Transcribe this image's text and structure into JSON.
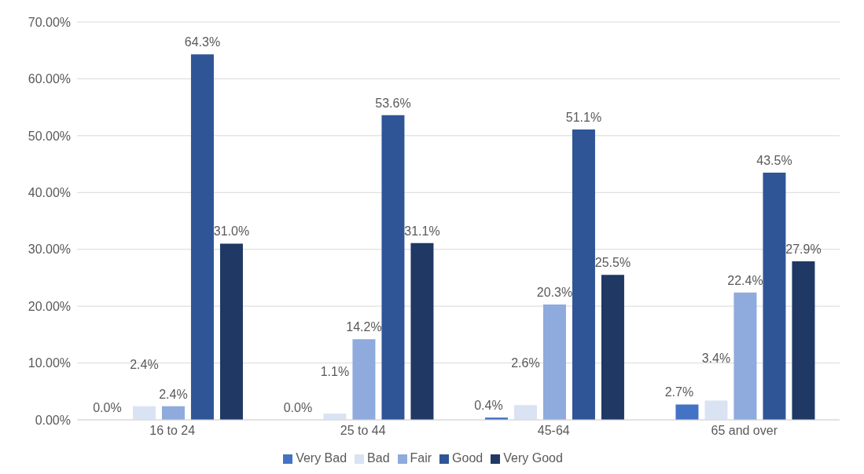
{
  "chart_data": {
    "type": "bar",
    "categories": [
      "16 to 24",
      "25 to 44",
      "45-64",
      "65 and over"
    ],
    "series": [
      {
        "name": "Very Bad",
        "color": "#4472c4",
        "values": [
          0.0,
          0.0,
          0.4,
          2.7
        ],
        "value_labels": [
          "0.0%",
          "0.0%",
          "0.4%",
          "2.7%"
        ]
      },
      {
        "name": "Bad",
        "color": "#dae3f3",
        "values": [
          2.4,
          1.1,
          2.6,
          3.4
        ],
        "value_labels": [
          "2.4%",
          "1.1%",
          "2.6%",
          "3.4%"
        ]
      },
      {
        "name": "Fair",
        "color": "#8faadc",
        "values": [
          2.4,
          14.2,
          20.3,
          22.4
        ],
        "value_labels": [
          "2.4%",
          "14.2%",
          "20.3%",
          "22.4%"
        ]
      },
      {
        "name": "Good",
        "color": "#2f5597",
        "values": [
          64.3,
          53.6,
          51.1,
          43.5
        ],
        "value_labels": [
          "64.3%",
          "53.6%",
          "51.1%",
          "43.5%"
        ]
      },
      {
        "name": "Very Good",
        "color": "#1f3864",
        "values": [
          31.0,
          31.1,
          25.5,
          27.9
        ],
        "value_labels": [
          "31.0%",
          "31.1%",
          "25.5%",
          "27.9%"
        ]
      }
    ],
    "ylim": [
      0,
      70
    ],
    "yticks": [
      {
        "value": 0,
        "label": "0.00%"
      },
      {
        "value": 10,
        "label": "10.00%"
      },
      {
        "value": 20,
        "label": "20.00%"
      },
      {
        "value": 30,
        "label": "30.00%"
      },
      {
        "value": 40,
        "label": "40.00%"
      },
      {
        "value": 50,
        "label": "50.00%"
      },
      {
        "value": 60,
        "label": "60.00%"
      },
      {
        "value": 70,
        "label": "70.00%"
      }
    ],
    "grid": "y",
    "legend": "bottom"
  }
}
